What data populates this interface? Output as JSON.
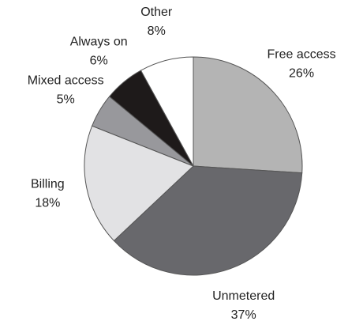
{
  "chart_data": {
    "type": "pie",
    "categories": [
      "Free access",
      "Unmetered",
      "Billing",
      "Mixed access",
      "Always on",
      "Other"
    ],
    "values": [
      26,
      37,
      18,
      5,
      6,
      8
    ],
    "value_labels": [
      "26%",
      "37%",
      "18%",
      "5%",
      "6%",
      "8%"
    ],
    "colors": [
      "#b4b4b4",
      "#68686c",
      "#e2e2e4",
      "#98989c",
      "#1e1a1a",
      "#ffffff"
    ]
  }
}
